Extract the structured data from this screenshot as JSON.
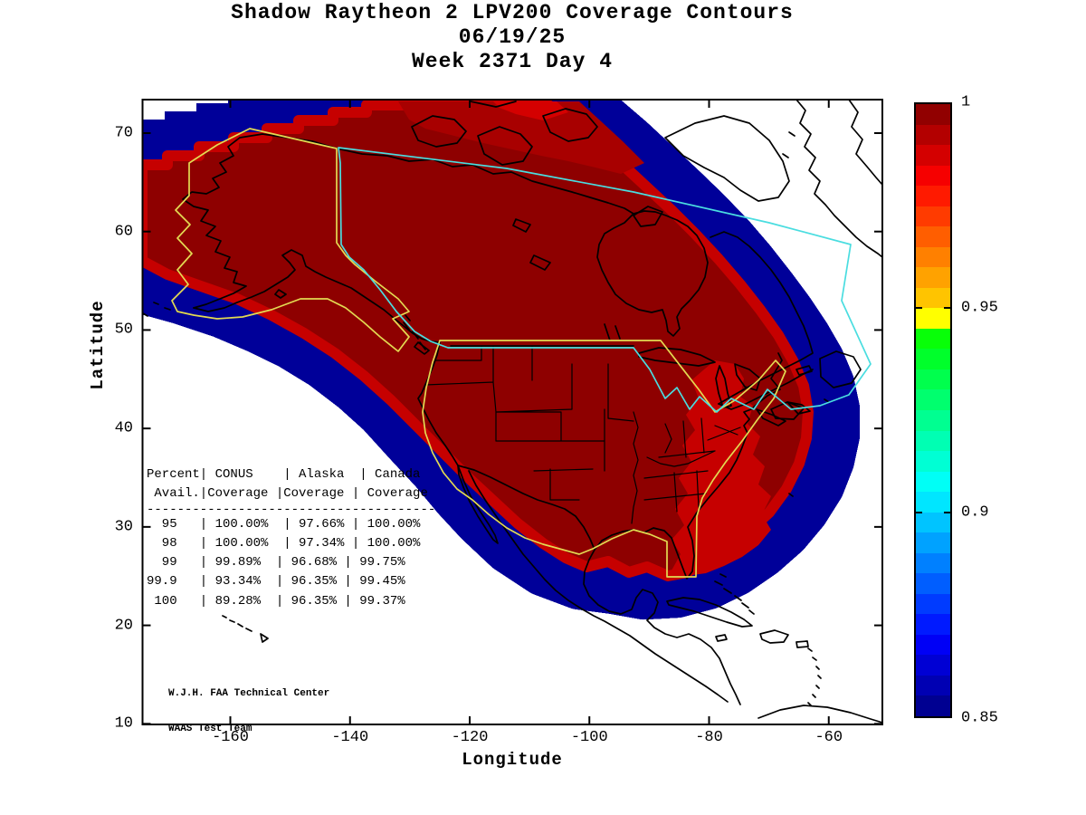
{
  "header": {
    "title_line1": "Shadow Raytheon 2 LPV200 Coverage Contours",
    "title_line2": "06/19/25",
    "title_line3": "Week 2371 Day 4"
  },
  "axes": {
    "x_label": "Longitude",
    "y_label": "Latitude",
    "x_ticks": [
      -160,
      -140,
      -120,
      -100,
      -80,
      -60
    ],
    "y_ticks": [
      70,
      60,
      50,
      40,
      30,
      20,
      10
    ],
    "x_range": [
      -175,
      -50.8
    ],
    "y_range": [
      10,
      73.4
    ]
  },
  "colorbar": {
    "tick_labels": [
      "1",
      "0.95",
      "0.9",
      "0.85"
    ],
    "tick_values": [
      1,
      0.95,
      0.9,
      0.85
    ],
    "range": [
      0.85,
      1.0
    ],
    "band_colors": [
      "#000091",
      "#0000b3",
      "#0000d4",
      "#0000f6",
      "#001aff",
      "#003bff",
      "#005eff",
      "#0080ff",
      "#00a2ff",
      "#00c4ff",
      "#00e6ff",
      "#00fff6",
      "#00ffd4",
      "#00ffb3",
      "#00ff91",
      "#00ff6e",
      "#00ff4d",
      "#00ff2b",
      "#08ff08",
      "#ffff00",
      "#ffc400",
      "#ffa200",
      "#ff8000",
      "#ff5e00",
      "#ff3b00",
      "#ff1a00",
      "#f60000",
      "#d40000",
      "#b30000",
      "#910000"
    ]
  },
  "coverage_table": {
    "header_line1": "Percent| CONUS    | Alaska  | Canada",
    "header_line2": " Avail.|Coverage |Coverage | Coverage",
    "separator": "--------------------------------------",
    "columns": [
      "Percent Avail.",
      "CONUS Coverage",
      "Alaska Coverage",
      "Canada Coverage"
    ],
    "rows": [
      {
        "percent": "95",
        "conus": "100.00%",
        "alaska": "97.66%",
        "canada": "100.00%"
      },
      {
        "percent": "98",
        "conus": "100.00%",
        "alaska": "97.34%",
        "canada": "100.00%"
      },
      {
        "percent": "99",
        "conus": "99.89%",
        "alaska": "96.68%",
        "canada": "99.75%"
      },
      {
        "percent": "99.9",
        "conus": "93.34%",
        "alaska": "96.35%",
        "canada": "99.45%"
      },
      {
        "percent": "100",
        "conus": "89.28%",
        "alaska": "96.35%",
        "canada": "99.37%"
      }
    ]
  },
  "credit": {
    "line1": "W.J.H. FAA Technical Center",
    "line2": "WAAS Test Team"
  },
  "map_colors": {
    "coverage_core": "#8e0000",
    "coverage_high": "#e00000",
    "coverage_mid": "#c60000",
    "coverage_arctic": "#a80000",
    "fringe_outer_to_inner": [
      "#000099",
      "#0033ff",
      "#0080ff",
      "#00ccff",
      "#00ffd5",
      "#44ee22",
      "#ccff00",
      "#ffff00",
      "#ffcc00",
      "#ff9900",
      "#ff6600",
      "#ff2a00"
    ],
    "boundary_conus_alaska": "#e3da52",
    "boundary_canada": "#4adde0",
    "coastline": "#000000"
  },
  "chart_data": {
    "type": "heatmap",
    "title": "Shadow Raytheon 2 LPV200 Coverage Contours 06/19/25 Week 2371 Day 4",
    "xlabel": "Longitude",
    "ylabel": "Latitude",
    "xlim": [
      -175,
      -50.8
    ],
    "ylim": [
      10,
      73.4
    ],
    "colorbar_range": [
      0.85,
      1.0
    ],
    "colorbar_ticks": [
      1,
      0.95,
      0.9,
      0.85
    ],
    "description": "LPV200 availability contours over North America; availability ~1.0 (dark red) over CONUS, Alaska and Canada, falling off through jet colormap bands (red-orange-yellow-green-cyan-blue) to 0.85 at the outer edge of the WAAS coverage blob.",
    "coverage_statistics": {
      "percent_availability": [
        95,
        98,
        99,
        99.9,
        100
      ],
      "conus_coverage_pct": [
        100.0,
        100.0,
        99.89,
        93.34,
        89.28
      ],
      "alaska_coverage_pct": [
        97.66,
        97.34,
        96.68,
        96.35,
        96.35
      ],
      "canada_coverage_pct": [
        100.0,
        100.0,
        99.75,
        99.45,
        99.37
      ]
    }
  }
}
